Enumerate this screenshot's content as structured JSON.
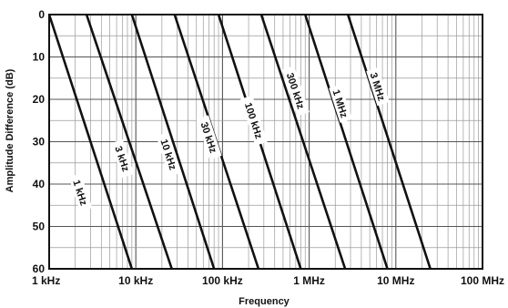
{
  "chart_data": {
    "type": "line",
    "xlabel": "Frequency",
    "ylabel": "Amplitude Difference (dB)",
    "x_scale": "log",
    "x_range_hz": [
      1000,
      100000000
    ],
    "y_range_db": [
      0,
      60
    ],
    "y_inverted": true,
    "grid": true,
    "x_ticks": [
      {
        "value": 1000,
        "label": "1 kHz"
      },
      {
        "value": 10000,
        "label": "10 kHz"
      },
      {
        "value": 100000,
        "label": "100 kHz"
      },
      {
        "value": 1000000,
        "label": "1 MHz"
      },
      {
        "value": 10000000,
        "label": "10 MHz"
      },
      {
        "value": 100000000,
        "label": "100 MHz"
      }
    ],
    "y_ticks": [
      {
        "value": 0,
        "label": "0"
      },
      {
        "value": 10,
        "label": "10"
      },
      {
        "value": 20,
        "label": "20"
      },
      {
        "value": 30,
        "label": "30"
      },
      {
        "value": 40,
        "label": "40"
      },
      {
        "value": 50,
        "label": "50"
      },
      {
        "value": 60,
        "label": "60"
      }
    ],
    "series": [
      {
        "name": "1 kHz",
        "points": [
          [
            1000,
            0
          ],
          [
            9000,
            60
          ]
        ],
        "label_at": {
          "x": 2300,
          "y": 42
        }
      },
      {
        "name": "3 kHz",
        "points": [
          [
            2700,
            0
          ],
          [
            26000,
            60
          ]
        ],
        "label_at": {
          "x": 7000,
          "y": 34
        }
      },
      {
        "name": "10 kHz",
        "points": [
          [
            9000,
            0
          ],
          [
            80000,
            60
          ]
        ],
        "label_at": {
          "x": 24000,
          "y": 33
        }
      },
      {
        "name": "30 kHz",
        "points": [
          [
            28000,
            0
          ],
          [
            260000,
            60
          ]
        ],
        "label_at": {
          "x": 70000,
          "y": 29
        }
      },
      {
        "name": "100 kHz",
        "points": [
          [
            90000,
            0
          ],
          [
            800000,
            60
          ]
        ],
        "label_at": {
          "x": 230000,
          "y": 25
        }
      },
      {
        "name": "300 kHz",
        "points": [
          [
            280000,
            0
          ],
          [
            2600000,
            60
          ]
        ],
        "label_at": {
          "x": 700000,
          "y": 18
        }
      },
      {
        "name": "1 MHz",
        "points": [
          [
            900000,
            0
          ],
          [
            8000000,
            60
          ]
        ],
        "label_at": {
          "x": 2300000,
          "y": 21
        }
      },
      {
        "name": "3 MHz",
        "points": [
          [
            2800000,
            0
          ],
          [
            25000000,
            60
          ]
        ],
        "label_at": {
          "x": 6200000,
          "y": 17
        }
      }
    ]
  }
}
